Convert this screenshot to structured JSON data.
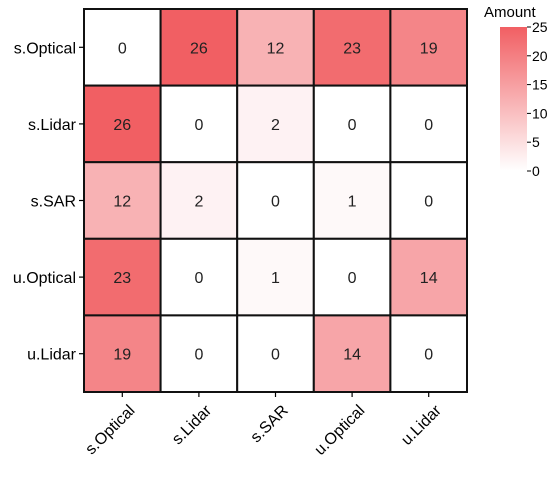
{
  "chart_data": {
    "type": "heatmap",
    "rows": [
      "s.Optical",
      "s.Lidar",
      "s.SAR",
      "u.Optical",
      "u.Lidar"
    ],
    "columns": [
      "s.Optical",
      "s.Lidar",
      "s.SAR",
      "u.Optical",
      "u.Lidar"
    ],
    "values": [
      [
        0,
        26,
        12,
        23,
        19
      ],
      [
        26,
        0,
        2,
        0,
        0
      ],
      [
        12,
        2,
        0,
        1,
        0
      ],
      [
        23,
        0,
        1,
        0,
        14
      ],
      [
        19,
        0,
        0,
        14,
        0
      ]
    ],
    "legend": {
      "title": "Amount",
      "ticks": [
        0,
        5,
        10,
        15,
        20,
        25
      ],
      "range": [
        0,
        25
      ],
      "placement": "top-right"
    },
    "colors": {
      "low": "#ffffff",
      "high": "#f15f63",
      "border": "#111111"
    }
  }
}
